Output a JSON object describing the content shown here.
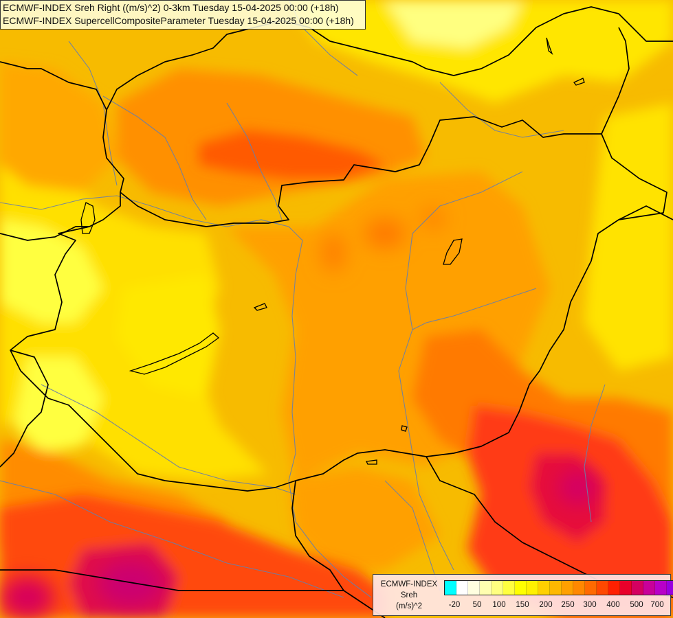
{
  "titles": {
    "line1": "ECMWF-INDEX Sreh Right ((m/s)^2) 0-3km Tuesday 15-04-2025 00:00 (+18h)",
    "line2": "ECMWF-INDEX SupercellCompositeParameter Tuesday 15-04-2025 00:00 (+18h)"
  },
  "legend": {
    "title_line1": "ECMWF-INDEX",
    "title_line2": "Sreh",
    "title_line3": "(m/s)^2",
    "colors": [
      "#00ffff",
      "#ffffff",
      "#ffffe0",
      "#ffffb0",
      "#ffff80",
      "#ffff40",
      "#ffff00",
      "#fff000",
      "#ffd000",
      "#ffb800",
      "#ffa000",
      "#ff8800",
      "#ff6a00",
      "#ff4800",
      "#ff2000",
      "#e8002a",
      "#d40060",
      "#c8009a",
      "#b800c8",
      "#9800e0",
      "#7000d8",
      "#4000b8",
      "#101080"
    ],
    "ticks": [
      "-20",
      "50",
      "100",
      "150",
      "200",
      "250",
      "300",
      "400",
      "500",
      "700"
    ]
  },
  "map": {
    "palette": {
      "background": "#f5b800",
      "yellow": "#fff200",
      "orange": "#ff9c00",
      "deep_orange": "#ff6a00",
      "red": "#ff1e1e",
      "magenta": "#e0005a",
      "border": "#000000",
      "river": "#6a7fa8"
    }
  }
}
